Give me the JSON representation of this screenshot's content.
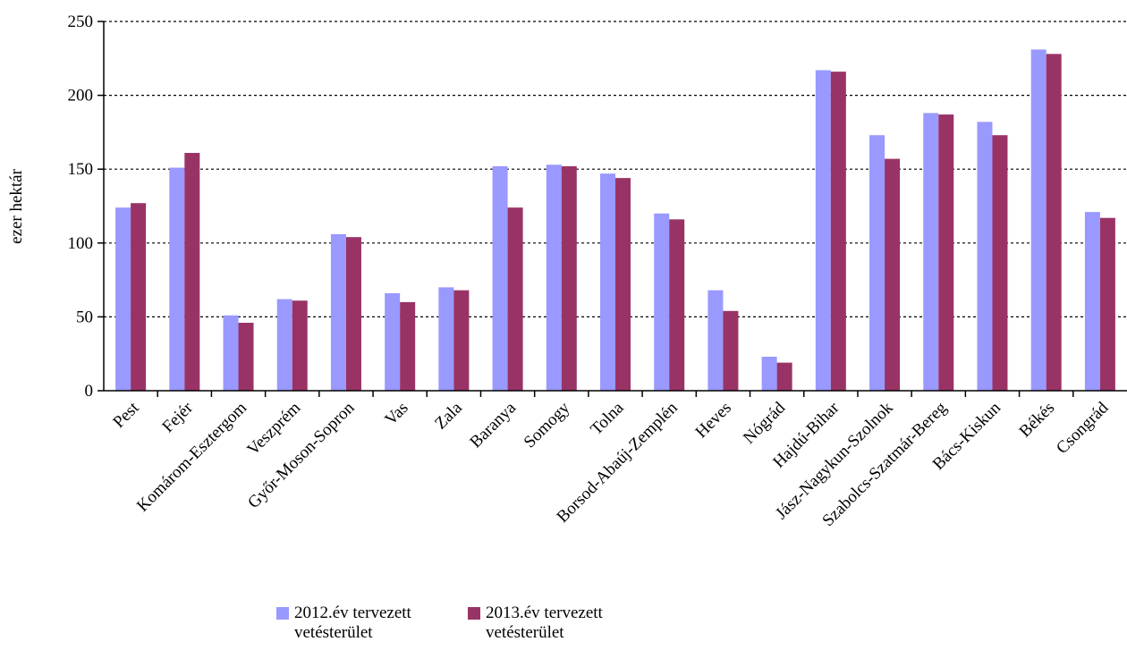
{
  "colors": {
    "s2012": "#9999ff",
    "s2013": "#993366"
  },
  "chart_data": {
    "type": "bar",
    "ylabel": "ezer hektár",
    "ylim": [
      0,
      250
    ],
    "yticks": [
      "0",
      "50",
      "100",
      "150",
      "200",
      "250"
    ],
    "grid": true,
    "legend_position": "bottom",
    "categories": [
      "Pest",
      "Fejér",
      "Komárom-Esztergom",
      "Veszprém",
      "Győr-Moson-Sopron",
      "Vas",
      "Zala",
      "Baranya",
      "Somogy",
      "Tolna",
      "Borsod-Abaúj-Zemplén",
      "Heves",
      "Nógrád",
      "Hajdú-Bihar",
      "Jász-Nagykun-Szolnok",
      "Szabolcs-Szatmár-Bereg",
      "Bács-Kiskun",
      "Békés",
      "Csongrád"
    ],
    "series": [
      {
        "name": "2012.év tervezett vetésterület",
        "values": [
          124,
          151,
          51,
          62,
          106,
          66,
          70,
          152,
          153,
          147,
          120,
          68,
          23,
          217,
          173,
          188,
          182,
          231,
          121
        ]
      },
      {
        "name": "2013.év tervezett vetésterület",
        "values": [
          127,
          161,
          46,
          61,
          104,
          60,
          68,
          124,
          152,
          144,
          116,
          54,
          19,
          216,
          157,
          187,
          173,
          228,
          117
        ]
      }
    ]
  },
  "legend": {
    "s2012_label": "2012.év tervezett\nvetésterület",
    "s2013_label": "2013.év tervezett\nvetésterület"
  }
}
